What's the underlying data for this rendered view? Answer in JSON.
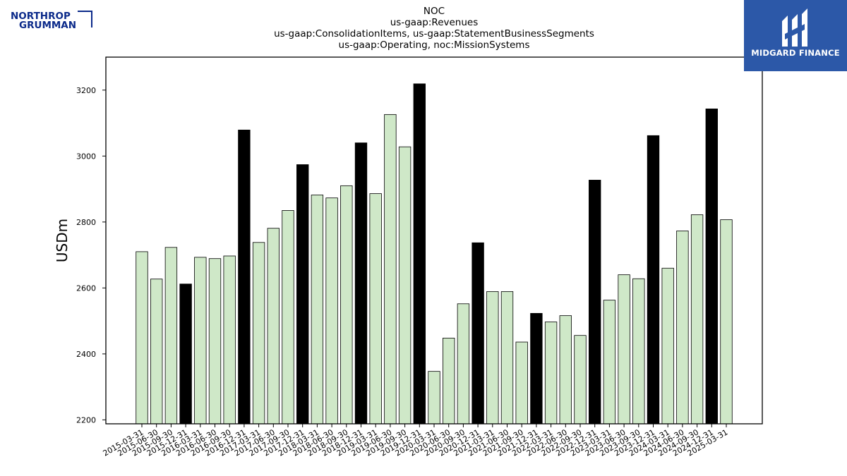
{
  "logos": {
    "left_line1": "NORTHROP",
    "left_line2": "GRUMMAN",
    "right_text": "MIDGARD FINANCE"
  },
  "colors": {
    "bar_normal": "#cfe8c8",
    "bar_highlight": "#000000",
    "logo_blue": "#0b2a8a",
    "brand_bg": "#2c58a8"
  },
  "chart_data": {
    "type": "bar",
    "title": [
      "NOC",
      "us-gaap:Revenues",
      "us-gaap:ConsolidationItems, us-gaap:StatementBusinessSegments",
      "us-gaap:Operating, noc:MissionSystems"
    ],
    "xlabel": "",
    "ylabel": "USDm",
    "ylim": [
      2188,
      3300
    ],
    "yticks": [
      2200,
      2400,
      2600,
      2800,
      3000,
      3200
    ],
    "grid": false,
    "categories": [
      "2015-03-31",
      "2015-06-30",
      "2015-09-30",
      "2015-12-31",
      "2016-03-31",
      "2016-06-30",
      "2016-09-30",
      "2016-12-31",
      "2017-03-31",
      "2017-06-30",
      "2017-09-30",
      "2017-12-31",
      "2018-03-31",
      "2018-06-30",
      "2018-09-30",
      "2018-12-31",
      "2019-03-31",
      "2019-06-30",
      "2019-09-30",
      "2019-12-31",
      "2020-03-31",
      "2020-06-30",
      "2020-09-30",
      "2020-12-31",
      "2021-03-31",
      "2021-06-30",
      "2021-09-30",
      "2021-12-31",
      "2022-03-31",
      "2022-06-30",
      "2022-09-30",
      "2022-12-31",
      "2023-03-31",
      "2023-06-30",
      "2023-09-30",
      "2023-12-31",
      "2024-03-31",
      "2024-06-30",
      "2024-09-30",
      "2024-12-31",
      "2025-03-31"
    ],
    "values": [
      2710,
      2627,
      2723,
      2612,
      2693,
      2689,
      2697,
      3079,
      2738,
      2781,
      2835,
      2974,
      2882,
      2873,
      2910,
      3040,
      2886,
      3126,
      3028,
      3219,
      2347,
      2448,
      2552,
      2737,
      2589,
      2589,
      2436,
      2523,
      2497,
      2516,
      2456,
      2927,
      2563,
      2640,
      2628,
      3062,
      2660,
      2773,
      2822,
      3143,
      2807
    ],
    "highlighted": [
      false,
      false,
      false,
      true,
      false,
      false,
      false,
      true,
      false,
      false,
      false,
      true,
      false,
      false,
      false,
      true,
      false,
      false,
      false,
      true,
      false,
      false,
      false,
      true,
      false,
      false,
      false,
      true,
      false,
      false,
      false,
      true,
      false,
      false,
      false,
      true,
      false,
      false,
      false,
      true,
      false
    ]
  }
}
